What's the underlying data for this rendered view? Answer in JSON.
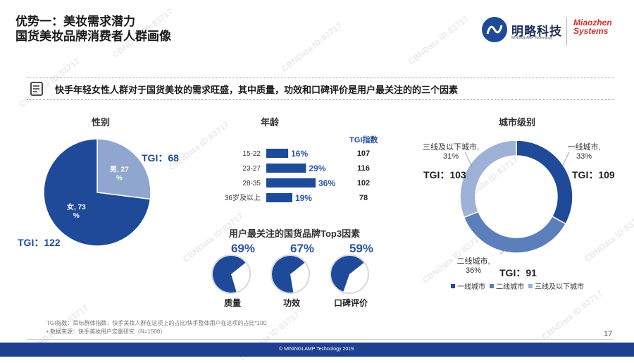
{
  "header": {
    "title_line1": "优势一：美妆需求潜力",
    "title_line2": "国货美妆品牌消费者人群画像",
    "logo_cn": "明略科技",
    "logo_sub": "MININGLAMP Technology",
    "logo_mz_line1": "Miaozhen",
    "logo_mz_line2": "Systems"
  },
  "banner": {
    "text": "快手年轻女性人群对于国货美妆的需求旺盛，其中质量，功效和口碑评价是用户最关注的的三个因素"
  },
  "watermark_text": "CBNData ID:83717",
  "gender": {
    "title": "性别",
    "tgi_label": "TGI：68",
    "tgi_label_female": "TGI：122",
    "colors": {
      "female": "#1f4a9a",
      "male": "#8fa6cf"
    }
  },
  "age": {
    "title": "年龄",
    "tgi_header": "TGI指数"
  },
  "city": {
    "title": "城市级别",
    "tgi_tier1": "TGI：109",
    "tgi_tier2": "TGI：91",
    "tgi_tier3": "TGI：103",
    "label_tier1_name": "一线城市,",
    "label_tier1_pct": "33%",
    "label_tier2_name": "二线城市,",
    "label_tier2_pct": "36%",
    "label_tier3_name": "三线及以下城市,",
    "label_tier3_pct": "31%",
    "colors": [
      "#1f4a9a",
      "#5a7fba",
      "#9db2d6"
    ]
  },
  "top3": {
    "title": "用户最关注的国货品牌Top3因素"
  },
  "chart_data": [
    {
      "type": "pie",
      "title": "性别",
      "categories": [
        "女",
        "男"
      ],
      "values": [
        73,
        27
      ],
      "labels": [
        "女, 73\n%",
        "男, 27\n%"
      ]
    },
    {
      "type": "bar",
      "title": "年龄",
      "orientation": "horizontal",
      "categories": [
        "15-22",
        "23-27",
        "28-35",
        "36岁及以上"
      ],
      "values": [
        16,
        29,
        36,
        19
      ],
      "value_labels": [
        "16%",
        "29%",
        "36%",
        "19%"
      ],
      "tgi": [
        107,
        116,
        102,
        78
      ]
    },
    {
      "type": "pie",
      "title": "城市级别",
      "donut": true,
      "categories": [
        "一线城市",
        "二线城市",
        "三线及以下城市"
      ],
      "values": [
        33,
        36,
        31
      ],
      "tgi": [
        109,
        91,
        103
      ]
    },
    {
      "type": "pie",
      "title": "用户最关注的国货品牌Top3因素",
      "categories": [
        "质量",
        "功效",
        "口碑评价"
      ],
      "values": [
        69,
        67,
        59
      ],
      "value_labels": [
        "69%",
        "67%",
        "59%"
      ]
    }
  ],
  "footer": {
    "note1": "TGI指数：目标群体指数，快手美妆人群在这项上的占比/快手整体用户在这项的占比*100",
    "note2": "•    数据来源：快手美妆用户定量研究（N=1500）",
    "page_number": "17",
    "copyright": "© MININGLAMP Technology 2019."
  }
}
